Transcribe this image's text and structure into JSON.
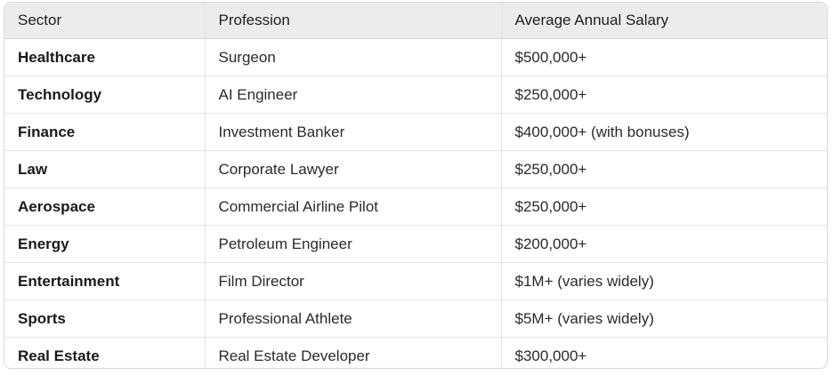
{
  "table": {
    "headers": [
      "Sector",
      "Profession",
      "Average Annual Salary"
    ],
    "rows": [
      {
        "sector": "Healthcare",
        "profession": "Surgeon",
        "salary": "$500,000+"
      },
      {
        "sector": "Technology",
        "profession": "AI Engineer",
        "salary": "$250,000+"
      },
      {
        "sector": "Finance",
        "profession": "Investment Banker",
        "salary": "$400,000+ (with bonuses)"
      },
      {
        "sector": "Law",
        "profession": "Corporate Lawyer",
        "salary": "$250,000+"
      },
      {
        "sector": "Aerospace",
        "profession": "Commercial Airline Pilot",
        "salary": "$250,000+"
      },
      {
        "sector": "Energy",
        "profession": "Petroleum Engineer",
        "salary": "$200,000+"
      },
      {
        "sector": "Entertainment",
        "profession": "Film Director",
        "salary": "$1M+ (varies widely)"
      },
      {
        "sector": "Sports",
        "profession": "Professional Athlete",
        "salary": "$5M+ (varies widely)"
      },
      {
        "sector": "Real Estate",
        "profession": "Real Estate Developer",
        "salary": "$300,000+"
      }
    ]
  }
}
